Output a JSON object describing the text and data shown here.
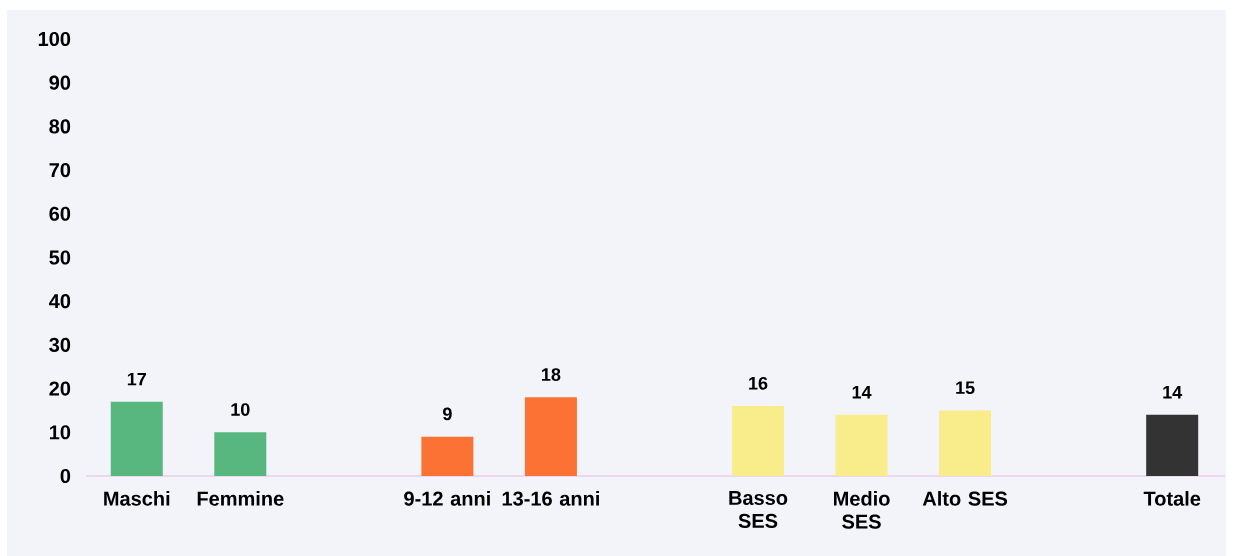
{
  "chart_data": {
    "type": "bar",
    "categories": [
      "Maschi",
      "Femmine",
      null,
      "9-12 anni",
      "13-16 anni",
      null,
      "Basso SES",
      "Medio SES",
      "Alto SES",
      null,
      "Totale"
    ],
    "values": [
      17,
      10,
      null,
      9,
      18,
      null,
      16,
      14,
      15,
      null,
      14
    ],
    "colors": [
      "#58b77f",
      "#58b77f",
      null,
      "#fb7234",
      "#fb7234",
      null,
      "#f8ec8b",
      "#f8ec8b",
      "#f8ec8b",
      null,
      "#333333"
    ],
    "ylim": [
      0,
      100
    ],
    "yticks": [
      0,
      10,
      20,
      30,
      40,
      50,
      60,
      70,
      80,
      90,
      100
    ],
    "data_labels": true
  }
}
